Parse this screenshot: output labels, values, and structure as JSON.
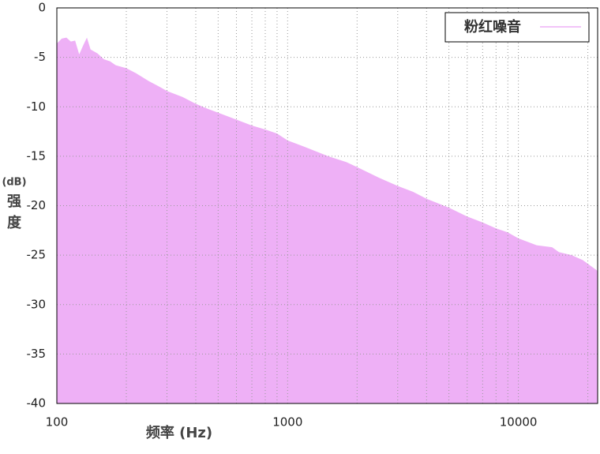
{
  "chart_data": {
    "type": "area",
    "x_label": "频率 (Hz)",
    "y_label_unit": "(dB)",
    "y_label": [
      "强",
      "度"
    ],
    "log_x": true,
    "grid": true,
    "legend_position": "upper right",
    "xlim": [
      100,
      22050
    ],
    "xticks": [
      100,
      1000,
      10000
    ],
    "xminorticks": [
      200,
      300,
      400,
      500,
      600,
      700,
      800,
      900,
      2000,
      3000,
      4000,
      5000,
      6000,
      7000,
      8000,
      9000,
      20000
    ],
    "ylim": [
      -40,
      0
    ],
    "yticks": [
      0,
      -5,
      -10,
      -15,
      -20,
      -25,
      -30,
      -35,
      -40
    ],
    "series": [
      {
        "name": "粉红噪音",
        "color": "#eeb0f6",
        "x": [
          100,
          105,
          110,
          115,
          120,
          125,
          130,
          135,
          140,
          150,
          160,
          170,
          180,
          200,
          220,
          250,
          280,
          300,
          350,
          400,
          450,
          500,
          600,
          700,
          800,
          900,
          1000,
          1200,
          1500,
          1800,
          2000,
          2500,
          3000,
          3500,
          4000,
          5000,
          6000,
          7000,
          8000,
          9000,
          10000,
          12000,
          14000,
          15000,
          17000,
          19000,
          22050
        ],
        "values": [
          -3.6,
          -3.1,
          -3.0,
          -3.4,
          -3.3,
          -4.7,
          -3.8,
          -3.0,
          -4.2,
          -4.6,
          -5.2,
          -5.4,
          -5.8,
          -6.1,
          -6.6,
          -7.4,
          -8.0,
          -8.4,
          -9.0,
          -9.7,
          -10.2,
          -10.6,
          -11.3,
          -11.9,
          -12.3,
          -12.7,
          -13.4,
          -14.1,
          -15.0,
          -15.6,
          -16.1,
          -17.2,
          -18.0,
          -18.6,
          -19.3,
          -20.2,
          -21.1,
          -21.7,
          -22.3,
          -22.7,
          -23.3,
          -24.0,
          -24.2,
          -24.7,
          -25.0,
          -25.5,
          -26.6
        ]
      }
    ]
  }
}
